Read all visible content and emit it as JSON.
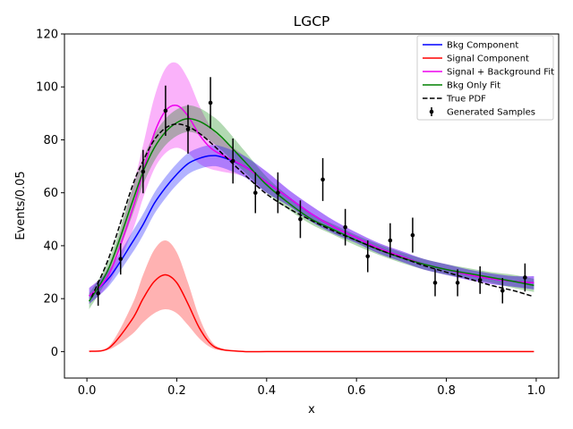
{
  "chart_data": {
    "type": "line",
    "title": "LGCP",
    "xlabel": "x",
    "ylabel": "Events/0.05",
    "xlim": [
      -0.05,
      1.05
    ],
    "ylim": [
      -10,
      120
    ],
    "xticks": [
      0.0,
      0.2,
      0.4,
      0.6,
      0.8,
      1.0
    ],
    "xtick_labels": [
      "0.0",
      "0.2",
      "0.4",
      "0.6",
      "0.8",
      "1.0"
    ],
    "yticks": [
      0,
      20,
      40,
      60,
      80,
      100,
      120
    ],
    "ytick_labels": [
      "0",
      "20",
      "40",
      "60",
      "80",
      "100",
      "120"
    ],
    "grid": false,
    "legend_position": "top-right",
    "legend": [
      {
        "label": "Bkg Component",
        "color": "#0000ff",
        "style": "line"
      },
      {
        "label": "Signal Component",
        "color": "#ff0000",
        "style": "line"
      },
      {
        "label": "Signal + Background Fit",
        "color": "#ee00ee",
        "style": "line"
      },
      {
        "label": "Bkg Only Fit",
        "color": "#008000",
        "style": "line"
      },
      {
        "label": "True PDF",
        "color": "#000000",
        "style": "dashed"
      },
      {
        "label": "Generated Samples",
        "color": "#000000",
        "style": "errorbar"
      }
    ],
    "x": [
      0.005,
      0.05,
      0.1,
      0.125,
      0.15,
      0.175,
      0.2,
      0.225,
      0.25,
      0.275,
      0.3,
      0.35,
      0.4,
      0.45,
      0.5,
      0.55,
      0.6,
      0.65,
      0.7,
      0.75,
      0.8,
      0.85,
      0.9,
      0.95,
      0.995
    ],
    "series": [
      {
        "name": "Bkg Component",
        "color": "#0000ff",
        "values": [
          21,
          28,
          41,
          48,
          56,
          62,
          67,
          71,
          73,
          74,
          73.5,
          70,
          64,
          58,
          52,
          47,
          43,
          39,
          36,
          33,
          31,
          29,
          27.5,
          26.5,
          26
        ],
        "band": [
          [
            18,
            24
          ],
          [
            25,
            31
          ],
          [
            37,
            45
          ],
          [
            44,
            52
          ],
          [
            52,
            60
          ],
          [
            58,
            66
          ],
          [
            63,
            71
          ],
          [
            67,
            75
          ],
          [
            69,
            77
          ],
          [
            70,
            78
          ],
          [
            69.5,
            77.5
          ],
          [
            66,
            74
          ],
          [
            60,
            68
          ],
          [
            55,
            61
          ],
          [
            49,
            55
          ],
          [
            44.5,
            49.5
          ],
          [
            41,
            45
          ],
          [
            37,
            41
          ],
          [
            34,
            38
          ],
          [
            31,
            35
          ],
          [
            29,
            33
          ],
          [
            27,
            31
          ],
          [
            25.5,
            29.5
          ],
          [
            24.5,
            28.5
          ],
          [
            23.5,
            28.5
          ]
        ]
      },
      {
        "name": "Signal Component",
        "color": "#ff0000",
        "values": [
          0.1,
          1.5,
          12,
          20,
          26.5,
          29,
          26,
          18,
          9,
          3,
          0.8,
          0.02,
          0,
          0,
          0,
          0,
          0,
          0,
          0,
          0,
          0,
          0,
          0,
          0,
          0
        ],
        "band": [
          [
            0.05,
            0.2
          ],
          [
            0.8,
            2.2
          ],
          [
            6.5,
            17.5
          ],
          [
            11,
            29
          ],
          [
            14.5,
            38.5
          ],
          [
            16,
            42
          ],
          [
            14.5,
            37.5
          ],
          [
            10,
            26
          ],
          [
            5,
            13
          ],
          [
            1.6,
            4.4
          ],
          [
            0.4,
            1.2
          ],
          [
            0.01,
            0.03
          ],
          [
            0,
            0
          ],
          [
            0,
            0
          ],
          [
            0,
            0
          ],
          [
            0,
            0
          ],
          [
            0,
            0
          ],
          [
            0,
            0
          ],
          [
            0,
            0
          ],
          [
            0,
            0
          ],
          [
            0,
            0
          ],
          [
            0,
            0
          ],
          [
            0,
            0
          ],
          [
            0,
            0
          ],
          [
            0,
            0
          ]
        ]
      },
      {
        "name": "Signal + Background Fit",
        "color": "#ee00ee",
        "values": [
          21,
          29.5,
          53,
          68,
          82.5,
          91,
          93,
          89,
          82,
          77,
          74.3,
          70,
          64,
          58,
          52,
          47,
          43,
          39,
          36,
          33,
          31,
          29,
          27.5,
          26.5,
          26
        ],
        "band": [
          [
            18,
            24
          ],
          [
            26,
            33
          ],
          [
            45,
            61
          ],
          [
            58,
            78
          ],
          [
            69,
            96
          ],
          [
            75,
            107
          ],
          [
            77,
            109
          ],
          [
            75,
            103
          ],
          [
            71,
            93
          ],
          [
            69,
            85
          ],
          [
            68,
            80.5
          ],
          [
            66,
            74
          ],
          [
            60,
            68
          ],
          [
            55,
            61
          ],
          [
            49,
            55
          ],
          [
            44.5,
            49.5
          ],
          [
            41,
            45
          ],
          [
            37,
            41
          ],
          [
            34,
            38
          ],
          [
            31,
            35
          ],
          [
            29,
            33
          ],
          [
            27,
            31
          ],
          [
            25.5,
            29.5
          ],
          [
            24.5,
            28.5
          ],
          [
            23.5,
            28.5
          ]
        ]
      },
      {
        "name": "Bkg Only Fit",
        "color": "#008000",
        "values": [
          19,
          32,
          56,
          68,
          77,
          83,
          86.5,
          88,
          87,
          84.5,
          81,
          72,
          63,
          56,
          50,
          46,
          42,
          38.5,
          35.5,
          33,
          31,
          29.5,
          28,
          26.5,
          25
        ],
        "band": [
          [
            16,
            22
          ],
          [
            29,
            35
          ],
          [
            51,
            61
          ],
          [
            63,
            73
          ],
          [
            72,
            82
          ],
          [
            78,
            88
          ],
          [
            81.5,
            91.5
          ],
          [
            83,
            93
          ],
          [
            82,
            92
          ],
          [
            79.5,
            89.5
          ],
          [
            76,
            86
          ],
          [
            68,
            76
          ],
          [
            60,
            66
          ],
          [
            53.5,
            58.5
          ],
          [
            48,
            52
          ],
          [
            44,
            48
          ],
          [
            40,
            44
          ],
          [
            36.5,
            40.5
          ],
          [
            33.5,
            37.5
          ],
          [
            31,
            35
          ],
          [
            29,
            33
          ],
          [
            27.5,
            31.5
          ],
          [
            26,
            30
          ],
          [
            24,
            29
          ],
          [
            22.5,
            27.5
          ]
        ]
      },
      {
        "name": "True PDF",
        "color": "#000000",
        "style": "dashed",
        "x": [
          0.01,
          0.05,
          0.1,
          0.125,
          0.15,
          0.175,
          0.2,
          0.225,
          0.25,
          0.275,
          0.3,
          0.35,
          0.4,
          0.45,
          0.5,
          0.55,
          0.6,
          0.65,
          0.7,
          0.75,
          0.8,
          0.85,
          0.9,
          0.95,
          0.99
        ],
        "values": [
          20.5,
          36,
          62,
          72,
          80,
          84.5,
          86,
          85,
          82.5,
          79,
          75,
          67,
          59.5,
          54,
          49.5,
          45.5,
          42,
          38.5,
          35.5,
          32.5,
          30,
          27.5,
          25,
          23,
          21
        ]
      }
    ],
    "samples": {
      "name": "Generated Samples",
      "x": [
        0.025,
        0.075,
        0.125,
        0.175,
        0.225,
        0.275,
        0.325,
        0.375,
        0.425,
        0.475,
        0.525,
        0.575,
        0.625,
        0.675,
        0.725,
        0.775,
        0.825,
        0.875,
        0.925,
        0.975
      ],
      "y": [
        22,
        35,
        68,
        91,
        84,
        94,
        72,
        60,
        60,
        50,
        65,
        47,
        36,
        42,
        44,
        26,
        26,
        27,
        23,
        28
      ],
      "yerr": [
        4.7,
        5.9,
        8.2,
        9.5,
        9.2,
        9.7,
        8.5,
        7.7,
        7.7,
        7.1,
        8.1,
        6.9,
        6.0,
        6.5,
        6.6,
        5.1,
        5.1,
        5.2,
        4.8,
        5.3
      ]
    }
  }
}
